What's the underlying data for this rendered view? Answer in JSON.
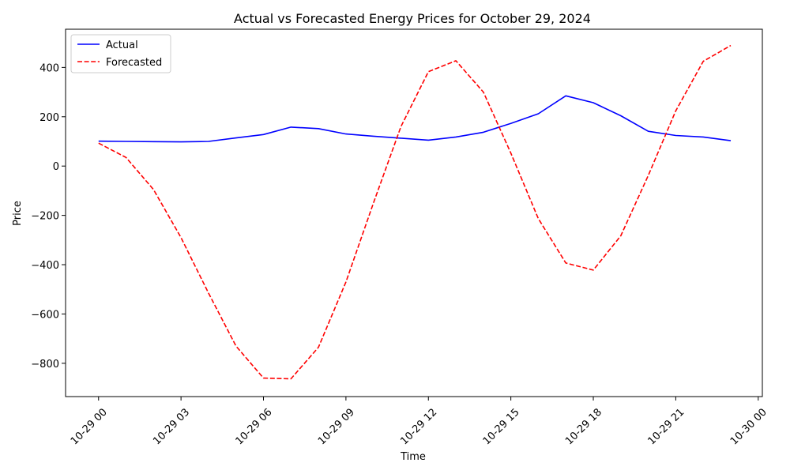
{
  "chart_data": {
    "type": "line",
    "title": "Actual vs Forecasted Energy Prices for October 29, 2024",
    "xlabel": "Time",
    "ylabel": "Price",
    "x_hours": [
      0,
      1,
      2,
      3,
      4,
      5,
      6,
      7,
      8,
      9,
      10,
      11,
      12,
      13,
      14,
      15,
      16,
      17,
      18,
      19,
      20,
      21,
      22,
      23
    ],
    "xlim": [
      -1.2,
      24.15
    ],
    "ylim": [
      -935,
      555
    ],
    "x_ticks": [
      {
        "value": 0,
        "label": "10-29 00"
      },
      {
        "value": 3,
        "label": "10-29 03"
      },
      {
        "value": 6,
        "label": "10-29 06"
      },
      {
        "value": 9,
        "label": "10-29 09"
      },
      {
        "value": 12,
        "label": "10-29 12"
      },
      {
        "value": 15,
        "label": "10-29 15"
      },
      {
        "value": 18,
        "label": "10-29 18"
      },
      {
        "value": 21,
        "label": "10-29 21"
      },
      {
        "value": 24,
        "label": "10-30 00"
      }
    ],
    "y_ticks": [
      {
        "value": 400,
        "label": "400"
      },
      {
        "value": 200,
        "label": "200"
      },
      {
        "value": 0,
        "label": "0"
      },
      {
        "value": -200,
        "label": "−200"
      },
      {
        "value": -400,
        "label": "−400"
      },
      {
        "value": -600,
        "label": "−600"
      },
      {
        "value": -800,
        "label": "−800"
      }
    ],
    "grid": false,
    "legend_position": "top-left",
    "series": [
      {
        "name": "Actual",
        "color": "#0000ff",
        "style": "solid",
        "values": [
          101,
          100,
          99,
          98,
          100,
          114,
          128,
          158,
          152,
          130,
          121,
          113,
          105,
          118,
          137,
          173,
          212,
          285,
          257,
          204,
          141,
          124,
          118,
          103
        ]
      },
      {
        "name": "Forecasted",
        "color": "#ff0000",
        "style": "dashed",
        "values": [
          93,
          35,
          -95,
          -290,
          -515,
          -730,
          -860,
          -863,
          -735,
          -470,
          -150,
          160,
          383,
          427,
          300,
          53,
          -213,
          -393,
          -422,
          -283,
          -38,
          224,
          425,
          489
        ]
      }
    ]
  }
}
